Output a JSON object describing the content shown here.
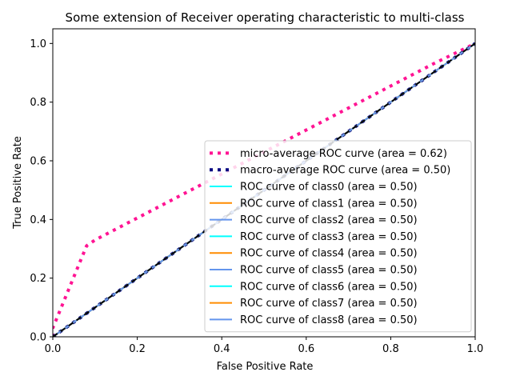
{
  "chart_data": {
    "type": "line",
    "title": "Some extension of Receiver operating characteristic to multi-class",
    "xlabel": "False Positive Rate",
    "ylabel": "True Positive Rate",
    "xlim": [
      0.0,
      1.0
    ],
    "ylim": [
      0.0,
      1.05
    ],
    "xticks": [
      "0.0",
      "0.2",
      "0.4",
      "0.6",
      "0.8",
      "1.0"
    ],
    "yticks": [
      "0.0",
      "0.2",
      "0.4",
      "0.6",
      "0.8",
      "1.0"
    ],
    "grid": false,
    "legend_position": "lower right",
    "series": [
      {
        "name": "micro-average ROC curve (area = 0.62)",
        "color": "#ff1493",
        "style": "dotted-thick",
        "x": [
          0.0,
          0.0,
          0.08,
          0.1,
          0.2,
          0.3,
          0.4,
          0.5,
          0.6,
          0.7,
          0.8,
          0.9,
          1.0
        ],
        "y": [
          0.0,
          0.03,
          0.31,
          0.33,
          0.405,
          0.48,
          0.555,
          0.63,
          0.705,
          0.78,
          0.855,
          0.93,
          1.0
        ]
      },
      {
        "name": "macro-average ROC curve (area = 0.50)",
        "color": "#000080",
        "style": "dotted-thick",
        "x": [
          0.0,
          1.0
        ],
        "y": [
          0.0,
          1.0
        ]
      },
      {
        "name": "ROC curve of class0 (area = 0.50)",
        "color": "#00ffff",
        "style": "solid",
        "x": [
          0.0,
          1.0
        ],
        "y": [
          0.0,
          1.0
        ]
      },
      {
        "name": "ROC curve of class1 (area = 0.50)",
        "color": "#ff8c00",
        "style": "solid",
        "x": [
          0.0,
          1.0
        ],
        "y": [
          0.0,
          1.0
        ]
      },
      {
        "name": "ROC curve of class2 (area = 0.50)",
        "color": "#6495ed",
        "style": "solid",
        "x": [
          0.0,
          1.0
        ],
        "y": [
          0.0,
          1.0
        ]
      },
      {
        "name": "ROC curve of class3 (area = 0.50)",
        "color": "#00ffff",
        "style": "solid",
        "x": [
          0.0,
          1.0
        ],
        "y": [
          0.0,
          1.0
        ]
      },
      {
        "name": "ROC curve of class4 (area = 0.50)",
        "color": "#ff8c00",
        "style": "solid",
        "x": [
          0.0,
          1.0
        ],
        "y": [
          0.0,
          1.0
        ]
      },
      {
        "name": "ROC curve of class5 (area = 0.50)",
        "color": "#6495ed",
        "style": "solid",
        "x": [
          0.0,
          1.0
        ],
        "y": [
          0.0,
          1.0
        ]
      },
      {
        "name": "ROC curve of class6 (area = 0.50)",
        "color": "#00ffff",
        "style": "solid",
        "x": [
          0.0,
          1.0
        ],
        "y": [
          0.0,
          1.0
        ]
      },
      {
        "name": "ROC curve of class7 (area = 0.50)",
        "color": "#ff8c00",
        "style": "solid",
        "x": [
          0.0,
          1.0
        ],
        "y": [
          0.0,
          1.0
        ]
      },
      {
        "name": "ROC curve of class8 (area = 0.50)",
        "color": "#6495ed",
        "style": "solid",
        "x": [
          0.0,
          1.0
        ],
        "y": [
          0.0,
          1.0
        ]
      }
    ],
    "reference_line": {
      "color": "#000000",
      "style": "dashed",
      "x": [
        0.0,
        1.0
      ],
      "y": [
        0.0,
        1.0
      ]
    }
  }
}
